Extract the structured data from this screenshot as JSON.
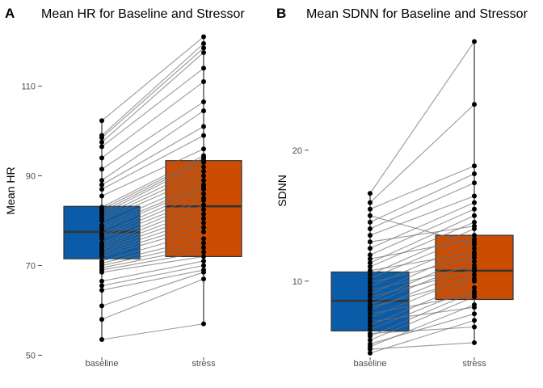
{
  "colors": {
    "baseline": "#0a5ca8",
    "stress": "#cc4c02"
  },
  "chart_data": [
    {
      "type": "box",
      "panel_label": "A",
      "title": "Mean HR for Baseline and Stressor",
      "xlabel": "",
      "ylabel": "Mean HR",
      "categories": [
        "baseline",
        "stress"
      ],
      "ylim": [
        49,
        122
      ],
      "yticks": [
        50,
        70,
        90,
        110
      ],
      "grid": false,
      "boxes": [
        {
          "name": "baseline",
          "q1": 71.5,
          "median": 77.5,
          "q3": 83.2,
          "min": 53.5,
          "max": 102.3
        },
        {
          "name": "stress",
          "q1": 72.0,
          "median": 83.2,
          "q3": 93.4,
          "min": 57.0,
          "max": 121.0
        }
      ],
      "pairs": [
        [
          53.5,
          57.0
        ],
        [
          58.0,
          67.0
        ],
        [
          61.0,
          68.5
        ],
        [
          64.5,
          69.0
        ],
        [
          65.5,
          70.0
        ],
        [
          66.5,
          71.0
        ],
        [
          68.5,
          72.0
        ],
        [
          69.0,
          73.0
        ],
        [
          69.5,
          74.0
        ],
        [
          70.0,
          75.0
        ],
        [
          70.5,
          76.0
        ],
        [
          71.0,
          77.5
        ],
        [
          72.0,
          78.5
        ],
        [
          72.5,
          79.5
        ],
        [
          73.0,
          80.5
        ],
        [
          73.5,
          81.5
        ],
        [
          74.0,
          82.5
        ],
        [
          74.5,
          83.5
        ],
        [
          75.0,
          84.5
        ],
        [
          76.0,
          85.0
        ],
        [
          76.5,
          86.0
        ],
        [
          77.0,
          87.0
        ],
        [
          78.0,
          87.5
        ],
        [
          78.5,
          88.0
        ],
        [
          79.0,
          89.0
        ],
        [
          80.0,
          90.0
        ],
        [
          80.5,
          91.0
        ],
        [
          81.0,
          92.0
        ],
        [
          81.5,
          93.0
        ],
        [
          82.0,
          93.5
        ],
        [
          82.5,
          94.0
        ],
        [
          83.0,
          94.5
        ],
        [
          85.5,
          96.0
        ],
        [
          87.0,
          99.0
        ],
        [
          88.0,
          101.0
        ],
        [
          89.0,
          104.5
        ],
        [
          91.5,
          106.5
        ],
        [
          94.0,
          111.0
        ],
        [
          96.5,
          114.0
        ],
        [
          97.5,
          117.5
        ],
        [
          98.5,
          118.5
        ],
        [
          99.0,
          119.5
        ],
        [
          102.3,
          121.0
        ]
      ]
    },
    {
      "type": "box",
      "panel_label": "B",
      "title": "Mean SDNN for Baseline and Stressor",
      "xlabel": "",
      "ylabel": "SDNN",
      "categories": [
        "baseline",
        "stress"
      ],
      "ylim": [
        4.0,
        29.0
      ],
      "yticks": [
        10,
        20
      ],
      "grid": false,
      "boxes": [
        {
          "name": "baseline",
          "q1": 6.2,
          "median": 8.5,
          "q3": 10.7,
          "min": 4.5,
          "max": 16.7
        },
        {
          "name": "stress",
          "q1": 8.6,
          "median": 10.8,
          "q3": 13.5,
          "min": 5.3,
          "max": 28.3
        }
      ],
      "pairs": [
        [
          4.5,
          7.0
        ],
        [
          4.8,
          5.3
        ],
        [
          5.0,
          8.2
        ],
        [
          5.2,
          7.5
        ],
        [
          5.5,
          8.8
        ],
        [
          5.8,
          9.2
        ],
        [
          6.0,
          6.5
        ],
        [
          6.3,
          9.5
        ],
        [
          6.6,
          10.0
        ],
        [
          6.9,
          8.0
        ],
        [
          7.2,
          10.5
        ],
        [
          7.5,
          9.0
        ],
        [
          7.8,
          11.0
        ],
        [
          8.0,
          10.2
        ],
        [
          8.2,
          11.5
        ],
        [
          8.5,
          12.0
        ],
        [
          8.8,
          10.8
        ],
        [
          9.0,
          12.5
        ],
        [
          9.3,
          11.2
        ],
        [
          9.6,
          13.0
        ],
        [
          9.9,
          11.8
        ],
        [
          10.2,
          13.5
        ],
        [
          10.5,
          14.0
        ],
        [
          10.8,
          12.2
        ],
        [
          11.1,
          14.5
        ],
        [
          11.4,
          15.0
        ],
        [
          11.7,
          13.2
        ],
        [
          12.0,
          15.5
        ],
        [
          12.5,
          16.0
        ],
        [
          13.0,
          14.2
        ],
        [
          13.5,
          16.5
        ],
        [
          14.0,
          17.5
        ],
        [
          14.5,
          18.2
        ],
        [
          15.0,
          12.8
        ],
        [
          15.5,
          18.8
        ],
        [
          16.0,
          23.5
        ],
        [
          16.7,
          28.3
        ]
      ]
    }
  ]
}
